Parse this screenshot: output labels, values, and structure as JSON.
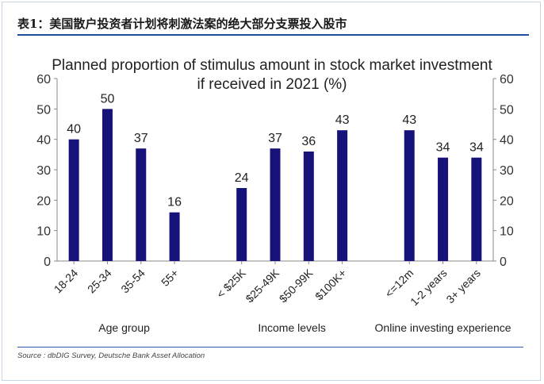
{
  "header": {
    "title": "表1：美国散户投资者计划将刺激法案的绝大部分支票投入股市",
    "rule_color": "#1f4e9a"
  },
  "chart_data": {
    "type": "bar",
    "title_line1": "Planned proportion of stimulus amount in stock market investment",
    "title_line2": "if received in 2021 (%)",
    "bar_color": "#16127a",
    "ylim": [
      0,
      60
    ],
    "yticks": [
      0,
      10,
      20,
      30,
      40,
      50,
      60
    ],
    "secondary_y_axis": true,
    "grid": false,
    "groups": [
      {
        "label": "Age group",
        "categories": [
          "18-24",
          "25-34",
          "35-54",
          "55+"
        ],
        "values": [
          40,
          50,
          37,
          16
        ]
      },
      {
        "label": "Income levels",
        "categories": [
          "< $25K",
          "$25-49K",
          "$50-99K",
          "$100K+"
        ],
        "values": [
          24,
          37,
          36,
          43
        ]
      },
      {
        "label": "Online investing experience",
        "categories": [
          "<=12m",
          "1-2 years",
          "3+ years"
        ],
        "values": [
          43,
          34,
          34
        ]
      }
    ]
  },
  "footer": {
    "source": "Source : dbDIG Survey, Deutsche Bank Asset Allocation",
    "rule_color": "#2b5ba8"
  }
}
